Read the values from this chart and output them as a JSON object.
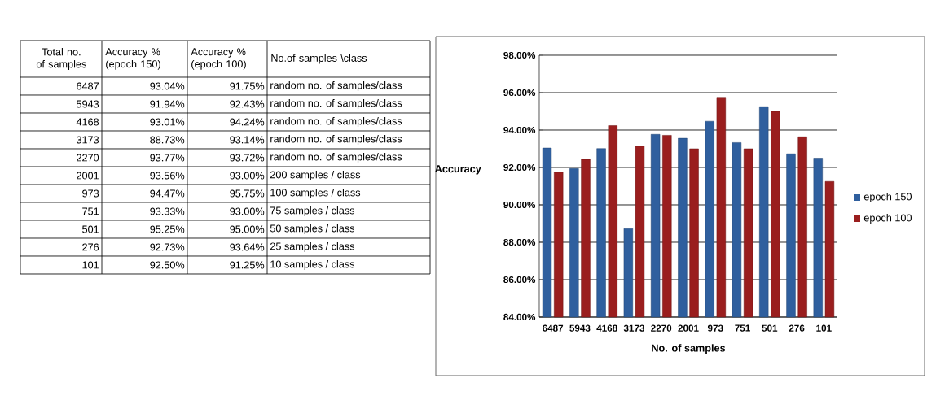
{
  "chart_data": {
    "type": "bar",
    "xlabel": "No. of samples",
    "ylabel": "Accuracy",
    "categories": [
      "6487",
      "5943",
      "4168",
      "3173",
      "2270",
      "2001",
      "973",
      "751",
      "501",
      "276",
      "101"
    ],
    "series": [
      {
        "name": "epoch 150",
        "color": "#2f5f9e",
        "values": [
          93.04,
          91.94,
          93.01,
          88.73,
          93.77,
          93.56,
          94.47,
          93.33,
          95.25,
          92.73,
          92.5
        ]
      },
      {
        "name": "epoch 100",
        "color": "#9a1e1e",
        "values": [
          91.75,
          92.43,
          94.24,
          93.14,
          93.72,
          93.0,
          95.75,
          93.0,
          95.0,
          93.64,
          91.25
        ]
      }
    ],
    "ylim": [
      84,
      98
    ],
    "yticks": [
      {
        "value": 84,
        "label": "84.00%"
      },
      {
        "value": 86,
        "label": "86.00%"
      },
      {
        "value": 88,
        "label": "88.00%"
      },
      {
        "value": 90,
        "label": "90.00%"
      },
      {
        "value": 92,
        "label": "92.00%"
      },
      {
        "value": 94,
        "label": "94.00%"
      },
      {
        "value": 96,
        "label": "96.00%"
      },
      {
        "value": 98,
        "label": "98.00%"
      }
    ],
    "grid": "y",
    "legend": "right",
    "annotations": [
      "Total no. of samples",
      "Accuracy % (epoch 150)",
      "Accuracy % (epoch 100)",
      "No.of samples \\class",
      "random no. of samples/class",
      "random no. of samples/class",
      "random no. of samples/class",
      "random no. of samples/class",
      "random no. of samples/class",
      "200 samples / class",
      "100 samples / class",
      "75 samples / class",
      "50 samples / class",
      "25 samples / class",
      "10  samples / class",
      "93.04%",
      "91.94%",
      "93.01%",
      "88.73%",
      "93.77%",
      "93.56%",
      "94.47%",
      "93.33%",
      "95.25%",
      "92.73%",
      "92.50%",
      "91.75%",
      "92.43%",
      "94.24%",
      "93.14%",
      "93.72%",
      "93.00%",
      "95.75%",
      "93.00%",
      "95.00%",
      "93.64%",
      "91.25%"
    ]
  }
}
